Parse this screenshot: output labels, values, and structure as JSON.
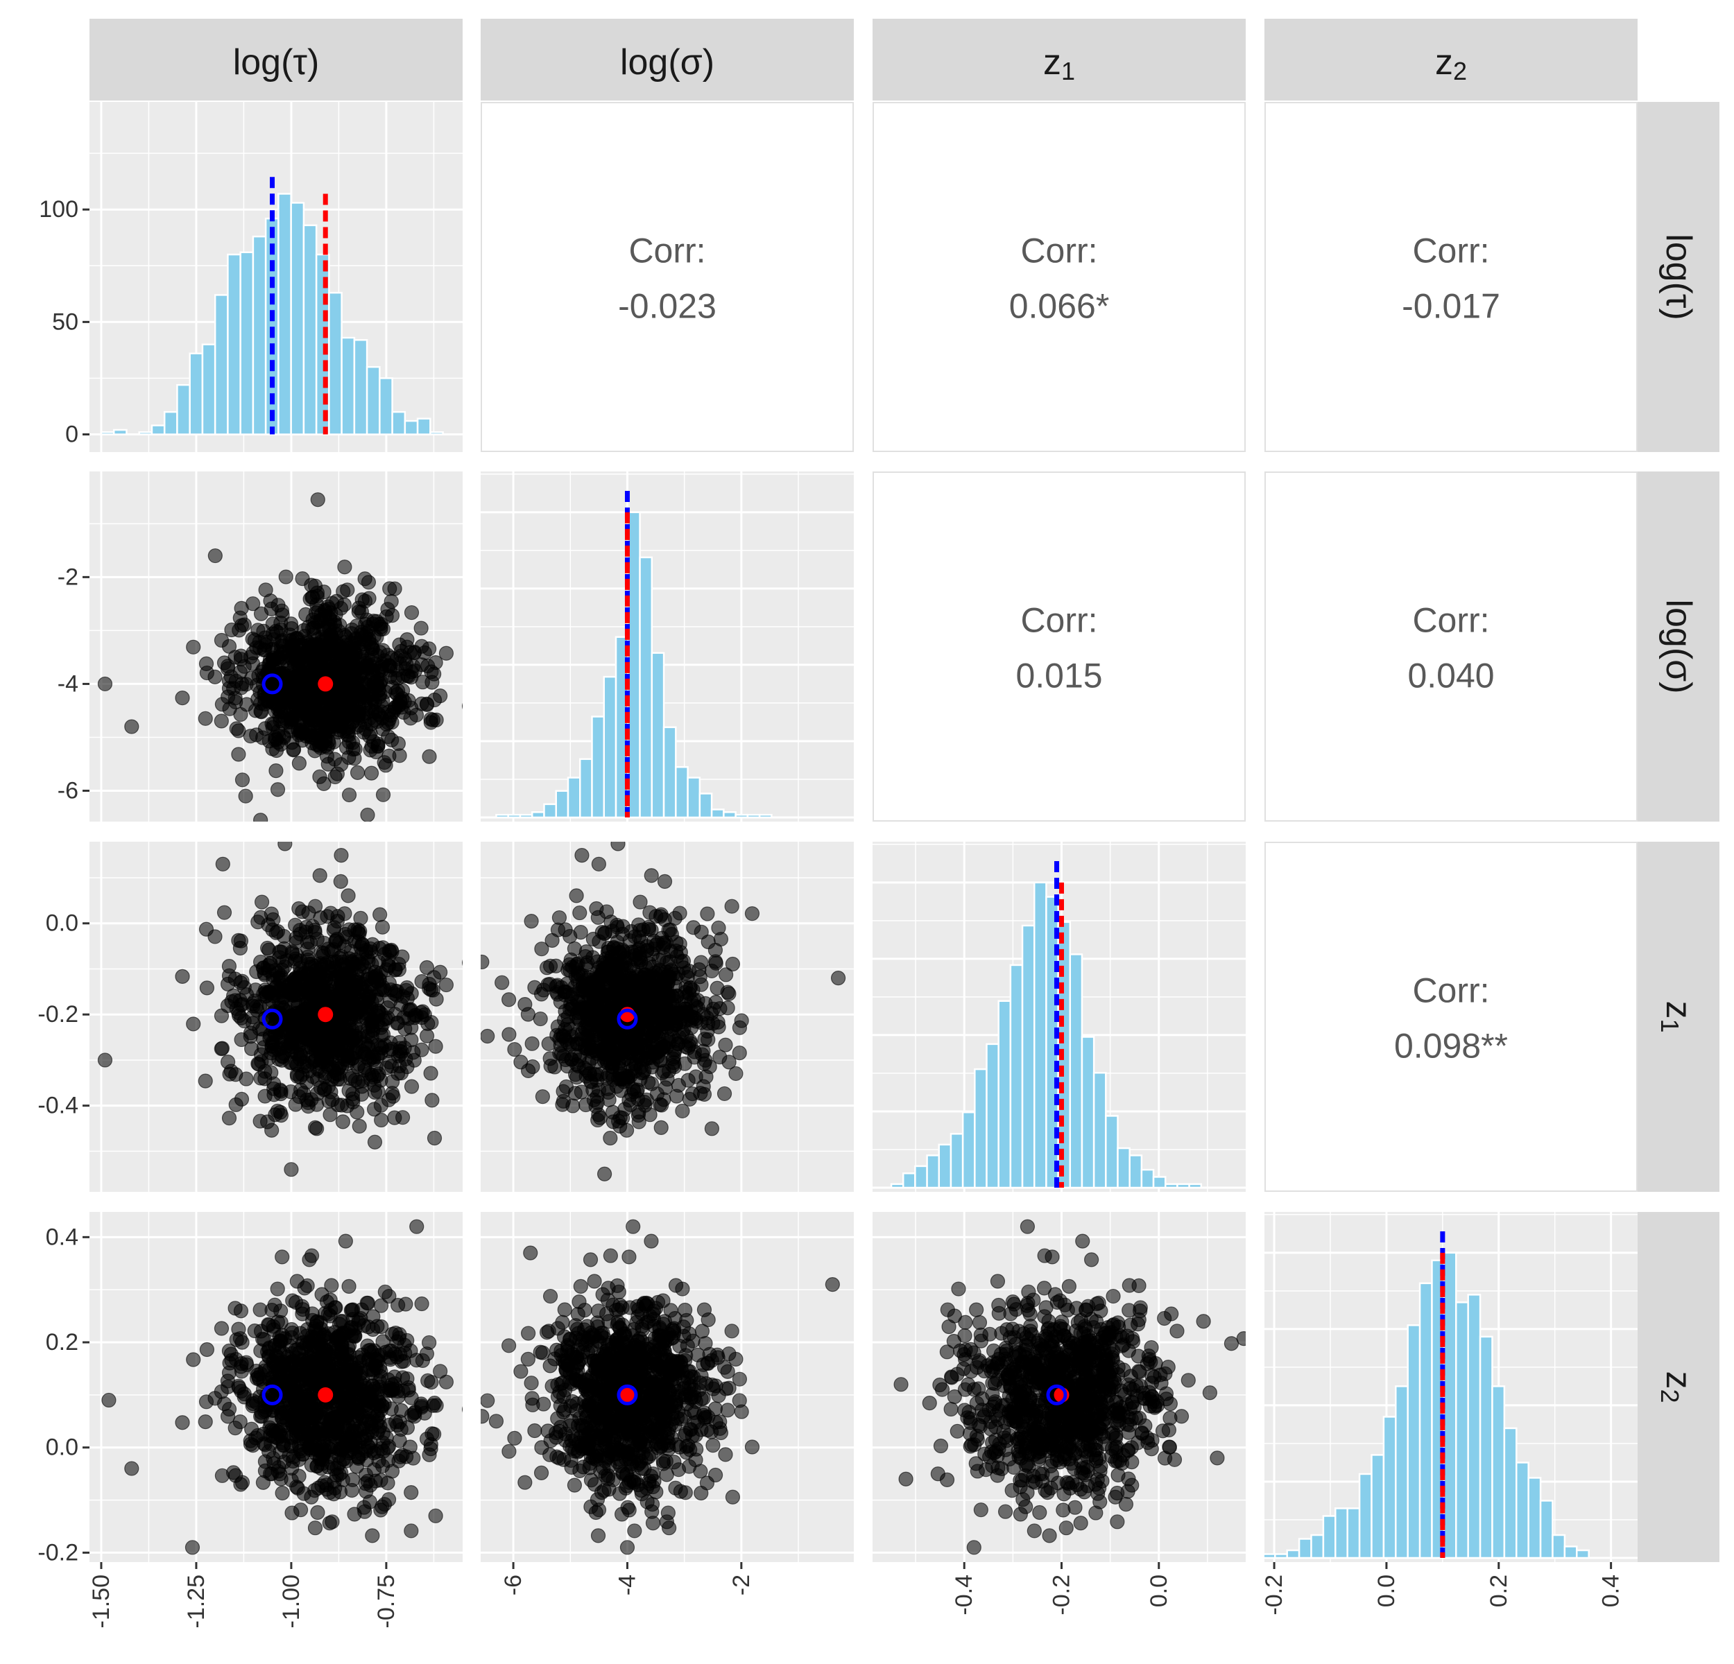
{
  "variables": [
    {
      "id": "logtau",
      "label_main": "log(τ)",
      "label_sub": "",
      "display": "log(τ)"
    },
    {
      "id": "logsigma",
      "label_main": "log(σ)",
      "label_sub": "",
      "display": "log(σ)"
    },
    {
      "id": "z1",
      "label_main": "z",
      "label_sub": "1",
      "display": "z1"
    },
    {
      "id": "z2",
      "label_main": "z",
      "label_sub": "2",
      "display": "z2"
    }
  ],
  "colors": {
    "panel_bg": "#ebebeb",
    "strip_bg": "#d9d9d9",
    "grid": "#ffffff",
    "bar_fill": "#87ceeb",
    "bar_outline": "#ffffff",
    "point": "#000000",
    "truth": "#ff0000",
    "estimate": "#0000ff",
    "corr_text": "#595959"
  },
  "chart_data": {
    "type": "pairs",
    "axes": {
      "logtau": {
        "lim": [
          -1.52,
          -0.56
        ],
        "ticks": [
          -1.5,
          -1.25,
          -1.0,
          -0.75
        ],
        "tick_labels": [
          "-1.50",
          "-1.25",
          "-1.00",
          "-0.75"
        ]
      },
      "logsigma": {
        "lim": [
          -6.5,
          -0.1
        ],
        "ticks": [
          -6,
          -4,
          -2
        ],
        "tick_labels": [
          "-6",
          "-4",
          "-2"
        ]
      },
      "z1": {
        "lim": [
          -0.58,
          0.17
        ],
        "ticks": [
          -0.4,
          -0.2,
          0.0
        ],
        "tick_labels": [
          "-0.4",
          "-0.2",
          "0.0"
        ]
      },
      "z2": {
        "lim": [
          -0.21,
          0.44
        ],
        "ticks": [
          -0.2,
          0.0,
          0.2,
          0.4
        ],
        "tick_labels": [
          "-0.2",
          "0.0",
          "0.2",
          "0.4"
        ]
      }
    },
    "diag_count_axis": {
      "lim": [
        -6,
        146
      ],
      "ticks": [
        0,
        50,
        100
      ],
      "tick_labels": [
        "0",
        "50",
        "100"
      ]
    },
    "histograms": {
      "logtau": {
        "start": -1.5,
        "binwidth": 0.0333,
        "counts": [
          1,
          2,
          0,
          1,
          4,
          10,
          22,
          36,
          40,
          62,
          80,
          81,
          88,
          96,
          107,
          103,
          93,
          80,
          63,
          43,
          42,
          30,
          25,
          10,
          6,
          7,
          1
        ]
      },
      "logsigma": {
        "start": -6.3,
        "binwidth": 0.21,
        "counts": [
          1,
          1,
          1,
          2,
          5,
          10,
          15,
          22,
          38,
          53,
          68,
          115,
          98,
          62,
          34,
          19,
          15,
          9,
          3,
          2,
          1,
          1,
          1
        ]
      },
      "z1": {
        "start": -0.55,
        "binwidth": 0.0245,
        "counts": [
          1,
          4,
          6,
          9,
          12,
          15,
          21,
          33,
          40,
          52,
          62,
          73,
          85,
          81,
          74,
          65,
          42,
          32,
          20,
          11,
          9,
          5,
          3,
          1,
          1,
          1
        ]
      },
      "z2": {
        "start": -0.22,
        "binwidth": 0.0215,
        "counts": [
          1,
          1,
          2,
          5,
          6,
          11,
          13,
          13,
          22,
          27,
          37,
          45,
          61,
          72,
          78,
          80,
          67,
          69,
          58,
          45,
          34,
          25,
          21,
          15,
          6,
          3,
          2
        ]
      }
    },
    "truth": {
      "logtau": -0.91,
      "logsigma": -4.0,
      "z1": -0.2,
      "z2": 0.1
    },
    "estimate": {
      "logtau": -1.05,
      "logsigma": -4.0,
      "z1": -0.21,
      "z2": 0.1
    },
    "scatter_sd": {
      "logtau": 0.12,
      "logsigma": 0.75,
      "z1": 0.1,
      "z2": 0.09
    },
    "n_points": 1000,
    "correlations": [
      {
        "row": 0,
        "col": 1,
        "label": "Corr:",
        "value": "-0.023"
      },
      {
        "row": 0,
        "col": 2,
        "label": "Corr:",
        "value": "0.066*"
      },
      {
        "row": 0,
        "col": 3,
        "label": "Corr:",
        "value": "-0.017"
      },
      {
        "row": 1,
        "col": 2,
        "label": "Corr:",
        "value": "0.015"
      },
      {
        "row": 1,
        "col": 3,
        "label": "Corr:",
        "value": "0.040"
      },
      {
        "row": 2,
        "col": 3,
        "label": "Corr:",
        "value": "0.098**"
      }
    ],
    "outliers": [
      {
        "x": "logtau",
        "y": "logsigma",
        "points": [
          [
            -0.93,
            -0.55
          ],
          [
            -1.2,
            -1.6
          ],
          [
            -1.49,
            -4.0
          ],
          [
            -1.42,
            -4.8
          ],
          [
            -1.12,
            -6.1
          ],
          [
            -0.62,
            -3.6
          ]
        ]
      },
      {
        "x": "logtau",
        "y": "z1",
        "points": [
          [
            -1.18,
            0.13
          ],
          [
            -1.49,
            -0.3
          ],
          [
            -0.62,
            -0.27
          ],
          [
            -1.0,
            -0.54
          ],
          [
            -0.78,
            -0.48
          ]
        ]
      },
      {
        "x": "logtau",
        "y": "z2",
        "points": [
          [
            -1.48,
            0.09
          ],
          [
            -0.67,
            0.42
          ],
          [
            -0.62,
            -0.13
          ],
          [
            -1.26,
            -0.19
          ],
          [
            -1.42,
            -0.04
          ]
        ]
      },
      {
        "x": "logsigma",
        "y": "z1",
        "points": [
          [
            -4.5,
            0.13
          ],
          [
            -0.3,
            -0.12
          ],
          [
            -6.2,
            -0.13
          ],
          [
            -2.4,
            -0.01
          ],
          [
            -4.4,
            -0.55
          ]
        ]
      },
      {
        "x": "logsigma",
        "y": "z2",
        "points": [
          [
            -5.7,
            0.37
          ],
          [
            -0.4,
            0.31
          ],
          [
            -6.3,
            0.05
          ],
          [
            -4.0,
            -0.19
          ],
          [
            -3.9,
            0.42
          ]
        ]
      },
      {
        "x": "z1",
        "y": "z2",
        "points": [
          [
            -0.53,
            0.12
          ],
          [
            0.12,
            -0.02
          ],
          [
            -0.38,
            -0.19
          ],
          [
            -0.27,
            0.42
          ],
          [
            -0.52,
            -0.06
          ]
        ]
      }
    ]
  }
}
